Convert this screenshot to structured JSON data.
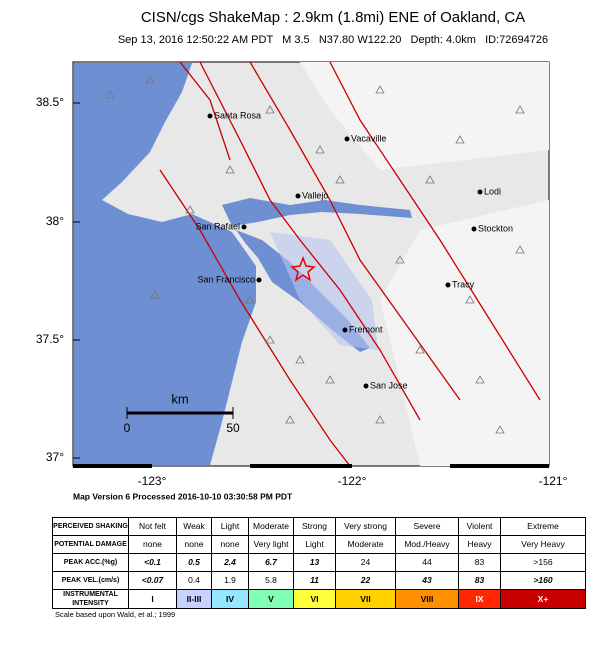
{
  "header": {
    "title": "CISN/cgs ShakeMap : 2.9km (1.8mi) ENE of Oakland, CA",
    "subtitle": "Sep 13, 2016 12:50:22 AM PDT   M 3.5   N37.80 W122.20   Depth: 4.0km   ID:72694726"
  },
  "map": {
    "lat_labels": [
      "38.5°",
      "38°",
      "37.5°",
      "37°"
    ],
    "lon_labels": [
      "-123°",
      "-122°",
      "-121°"
    ],
    "cities": [
      "Santa Rosa",
      "Vacaville",
      "Vallejo",
      "Lodi",
      "San Rafael",
      "Stockton",
      "San Francisco",
      "Tracy",
      "Fremont",
      "San Jose"
    ],
    "scale": {
      "unit": "km",
      "labels": [
        "0",
        "50"
      ]
    }
  },
  "version": "Map Version 6 Processed 2016-10-10 03:30:58 PM PDT",
  "table": {
    "rows": [
      [
        "PERCEIVED SHAKING",
        "Not felt",
        "Weak",
        "Light",
        "Moderate",
        "Strong",
        "Very strong",
        "Severe",
        "Violent",
        "Extreme"
      ],
      [
        "POTENTIAL DAMAGE",
        "none",
        "none",
        "none",
        "Very light",
        "Light",
        "Moderate",
        "Mod./Heavy",
        "Heavy",
        "Very Heavy"
      ],
      [
        "PEAK ACC.(%g)",
        "<0.1",
        "0.5",
        "2.4",
        "6.7",
        "13",
        "24",
        "44",
        "83",
        ">156"
      ],
      [
        "PEAK VEL.(cm/s)",
        "<0.07",
        "0.4",
        "1.9",
        "5.8",
        "11",
        "22",
        "43",
        "83",
        ">160"
      ],
      [
        "INSTRUMENTAL INTENSITY",
        "I",
        "II-III",
        "IV",
        "V",
        "VI",
        "VII",
        "VIII",
        "IX",
        "X+"
      ]
    ]
  },
  "footnote": "Scale based upon Wald, et al.; 1999"
}
